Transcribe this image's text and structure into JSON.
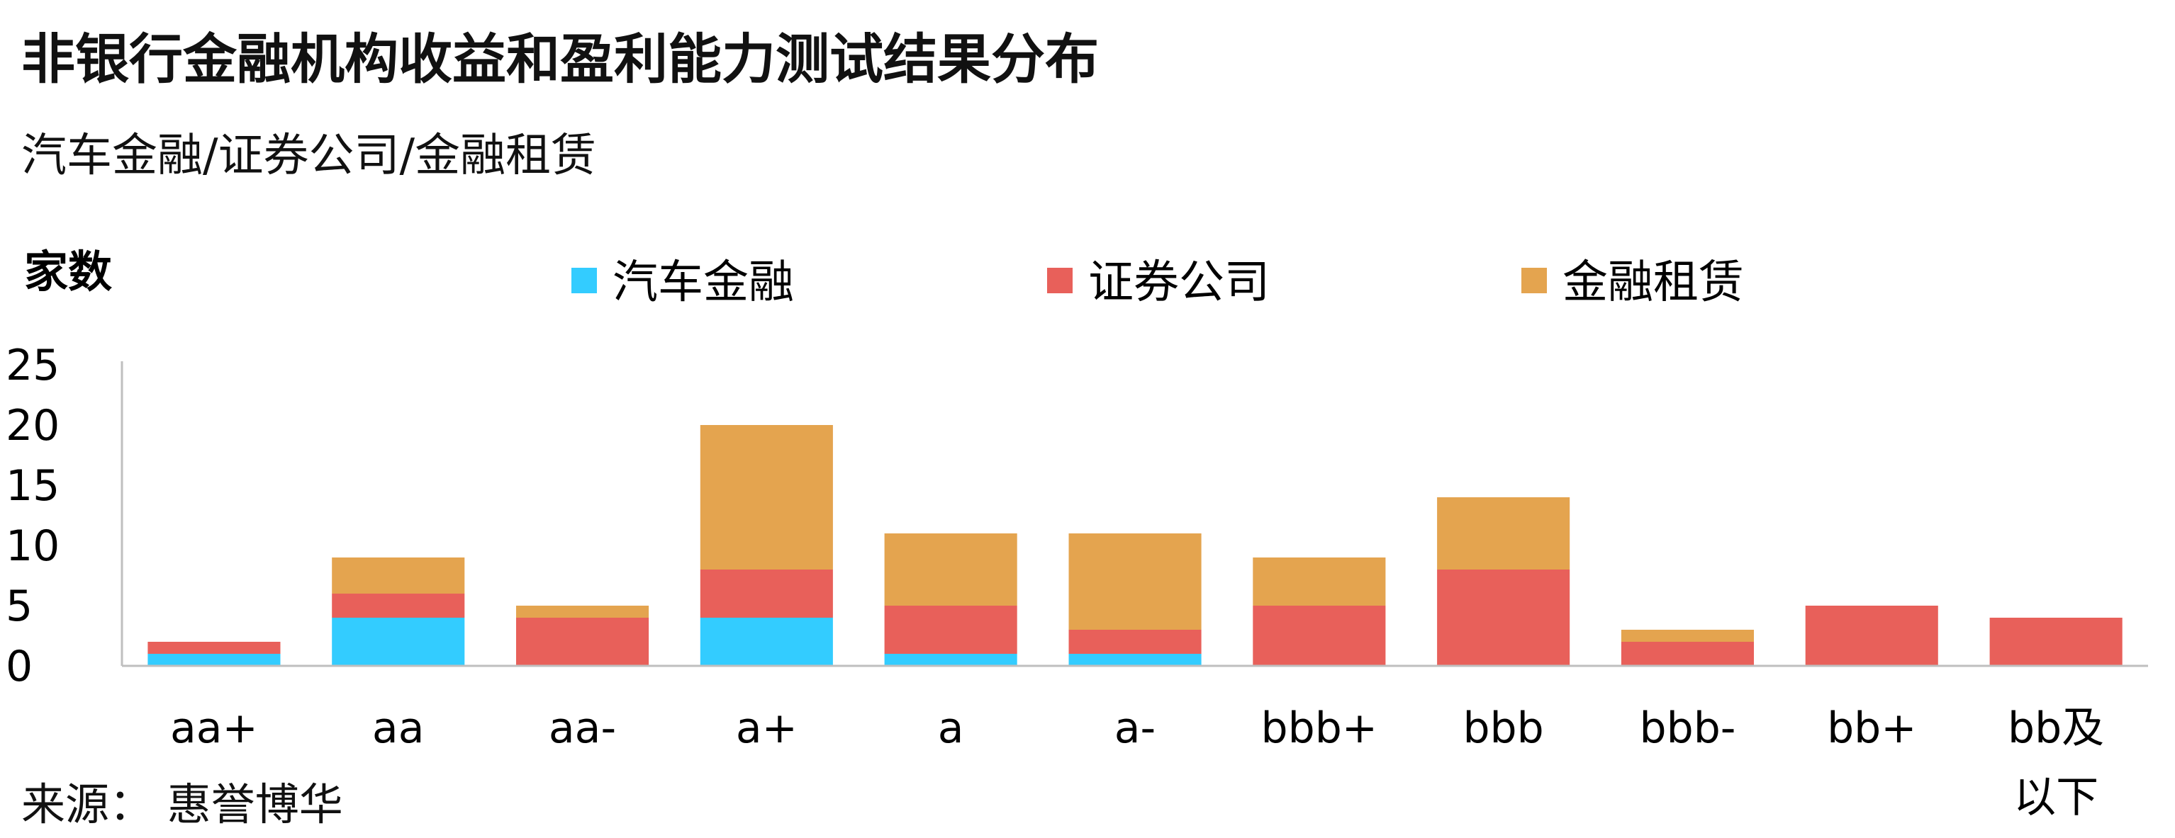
{
  "title": "非银行金融机构收益和盈利能力测试结果分布",
  "subtitle": "汽车金融/证券公司/金融租赁",
  "source": "来源：  惠誉博华",
  "chart_data": {
    "type": "bar",
    "stacked": true,
    "ylabel": "家数",
    "ylim": [
      0,
      25
    ],
    "yticks": [
      0,
      5,
      10,
      15,
      20,
      25
    ],
    "categories": [
      "aa+",
      "aa",
      "aa-",
      "a+",
      "a",
      "a-",
      "bbb+",
      "bbb",
      "bbb-",
      "bb+",
      "bb及以下"
    ],
    "series": [
      {
        "name": "汽车金融",
        "color": "#33CCFF",
        "values": [
          1,
          4,
          0,
          4,
          1,
          1,
          0,
          0,
          0,
          0,
          0
        ]
      },
      {
        "name": "证券公司",
        "color": "#E8605A",
        "values": [
          1,
          2,
          4,
          4,
          4,
          2,
          5,
          8,
          2,
          5,
          4
        ]
      },
      {
        "name": "金融租赁",
        "color": "#E4A44F",
        "values": [
          0,
          3,
          1,
          12,
          6,
          8,
          4,
          6,
          1,
          0,
          0
        ]
      }
    ],
    "legend_position": "top",
    "grid": false
  }
}
